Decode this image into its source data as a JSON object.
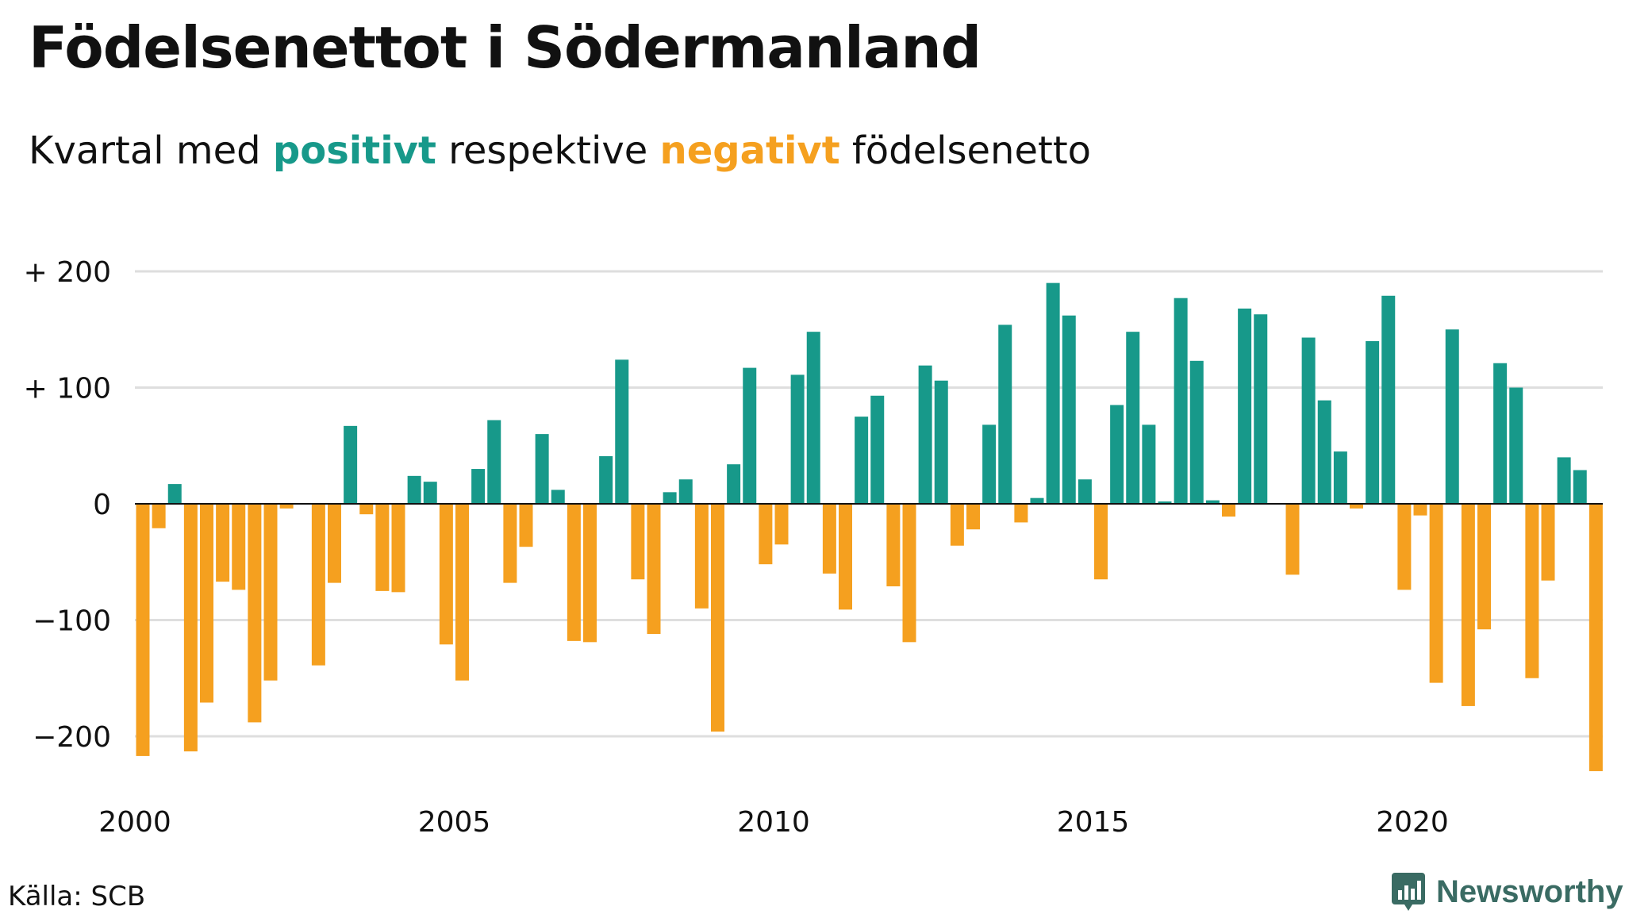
{
  "title": "Födelsenettot i Södermanland",
  "subtitle": {
    "prefix": "Kvartal med",
    "positive_word": "positivt",
    "middle": "respektive",
    "negative_word": "negativt",
    "suffix": "födelsenetto"
  },
  "source": "Källa: SCB",
  "brand": "Newsworthy",
  "colors": {
    "positive": "#17998a",
    "negative": "#f5a01f",
    "grid": "#dedede",
    "axis": "#111111",
    "brand": "#3a6b63"
  },
  "chart_data": {
    "type": "bar",
    "y_ticks": [
      {
        "value": 200,
        "label": "+ 200"
      },
      {
        "value": 100,
        "label": "+ 100"
      },
      {
        "value": 0,
        "label": "0"
      },
      {
        "value": -100,
        "label": "−100"
      },
      {
        "value": -200,
        "label": "−200"
      }
    ],
    "x_ticks": [
      {
        "value": 2000,
        "label": "2000"
      },
      {
        "value": 2005,
        "label": "2005"
      },
      {
        "value": 2010,
        "label": "2010"
      },
      {
        "value": 2015,
        "label": "2015"
      },
      {
        "value": 2020,
        "label": "2020"
      }
    ],
    "ylim": [
      -230,
      200
    ],
    "xlim": [
      2000,
      2023.25
    ],
    "grid": true,
    "x_start": "2000 Q1",
    "values": [
      -217,
      -21,
      17,
      -213,
      -171,
      -67,
      -74,
      -188,
      -152,
      -4,
      0,
      -139,
      -68,
      67,
      -9,
      -75,
      -76,
      24,
      19,
      -121,
      -152,
      30,
      72,
      -68,
      -37,
      60,
      12,
      -118,
      -119,
      41,
      124,
      -65,
      -112,
      10,
      21,
      -90,
      -196,
      34,
      117,
      -52,
      -35,
      111,
      148,
      -60,
      -91,
      75,
      93,
      -71,
      -119,
      119,
      106,
      -36,
      -22,
      68,
      154,
      -16,
      5,
      190,
      162,
      21,
      -65,
      85,
      148,
      68,
      2,
      177,
      123,
      3,
      -11,
      168,
      163,
      0,
      -61,
      143,
      89,
      45,
      -4,
      140,
      179,
      -74,
      -10,
      -154,
      150,
      -174,
      -108,
      121,
      100,
      -150,
      -66,
      40,
      29,
      -230
    ]
  }
}
